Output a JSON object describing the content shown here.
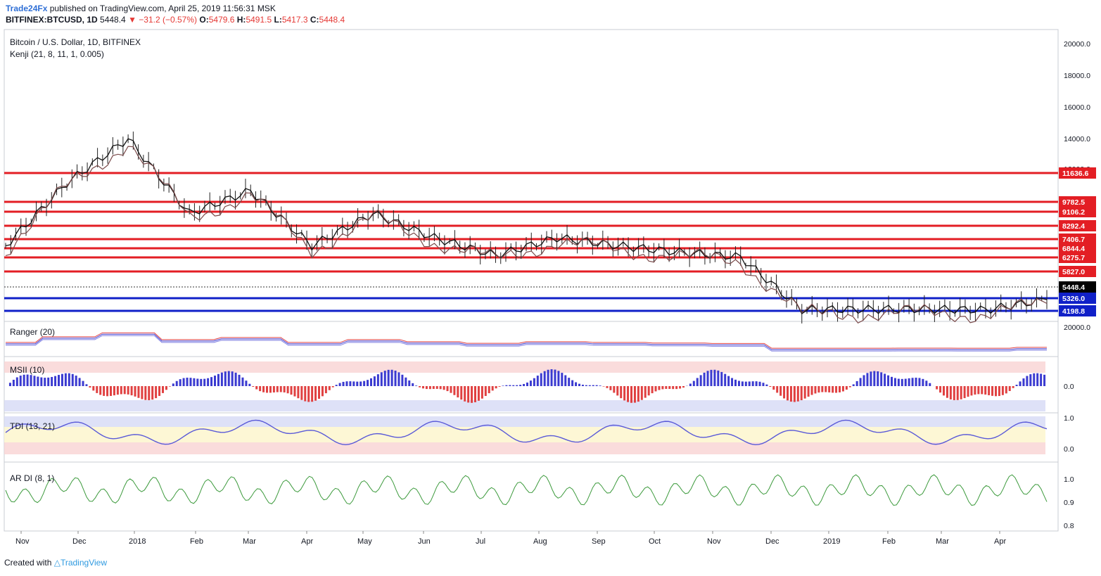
{
  "header": {
    "publisher": "Trade24Fx",
    "published_text": "published on TradingView.com, April 25, 2019 11:56:31 MSK",
    "symbol": "BITFINEX:BTCUSD, 1D",
    "last": "5448.4",
    "change": "−31.2 (−0.57%)",
    "o_label": "O:",
    "o": "5479.6",
    "h_label": "H:",
    "h": "5491.5",
    "l_label": "L:",
    "l": "5417.3",
    "c_label": "C:",
    "c": "5448.4"
  },
  "main_pane": {
    "title": "Bitcoin / U.S. Dollar, 1D, BITFINEX",
    "indicator": "Kenji (21, 8, 11, 1, 0.005)",
    "y_ticks": [
      "20000.0",
      "18000.0",
      "16000.0",
      "14000.0",
      "12000.0"
    ],
    "levels": [
      {
        "value": "11636.6",
        "color": "#e31e24"
      },
      {
        "value": "9782.5",
        "color": "#e31e24"
      },
      {
        "value": "9106.2",
        "color": "#e31e24"
      },
      {
        "value": "8292.4",
        "color": "#e31e24"
      },
      {
        "value": "7406.7",
        "color": "#e31e24"
      },
      {
        "value": "6844.4",
        "color": "#e31e24"
      },
      {
        "value": "6275.7",
        "color": "#e31e24"
      },
      {
        "value": "5827.0",
        "color": "#e31e24"
      },
      {
        "value": "5326.0",
        "color": "#1020c8"
      },
      {
        "value": "4198.8",
        "color": "#1020c8"
      }
    ],
    "current_price": "5448.4"
  },
  "panes": {
    "ranger": {
      "title": "Ranger (20)",
      "tick": "20000.0"
    },
    "msii": {
      "title": "MSII (10)",
      "tick": "0.0"
    },
    "tdi": {
      "title": "TDI (13, 21)",
      "ticks": [
        "1.0",
        "0.0"
      ]
    },
    "ardi": {
      "title": "AR DI (8, 1)",
      "ticks": [
        "1.0",
        "0.9",
        "0.8"
      ]
    }
  },
  "x_axis": [
    "Nov",
    "Dec",
    "2018",
    "Feb",
    "Mar",
    "Apr",
    "May",
    "Jun",
    "Jul",
    "Aug",
    "Sep",
    "Oct",
    "Nov",
    "Dec",
    "2019",
    "Feb",
    "Mar",
    "Apr"
  ],
  "chart_data": {
    "type": "line",
    "title": "Bitcoin / U.S. Dollar, 1D, BITFINEX",
    "series": [
      {
        "name": "Bitcoin / U.S. Dollar",
        "x": [
          "Nov",
          "Dec",
          "2018",
          "Feb",
          "Mar",
          "Apr",
          "May",
          "Jun",
          "Jul",
          "Aug",
          "Sep",
          "Oct",
          "Nov",
          "Dec",
          "2019",
          "Feb",
          "Mar",
          "Apr"
        ],
        "values": [
          7000,
          11000,
          14000,
          9000,
          10500,
          7000,
          9000,
          7500,
          6400,
          7500,
          7000,
          6600,
          6300,
          3800,
          3700,
          3600,
          3900,
          5200
        ]
      }
    ],
    "ylim": [
      3500,
      20500
    ],
    "grid": false
  },
  "footer": {
    "created_with": "Created with",
    "brand": "TradingView"
  }
}
